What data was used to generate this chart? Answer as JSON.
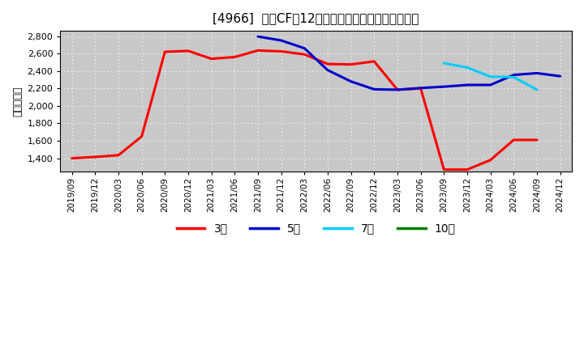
{
  "title": "[4966]  投賄CFだ12か月移動合計の標準偏差の推移",
  "ylabel": "（百万円）",
  "ylim": [
    1250,
    2860
  ],
  "yticks": [
    1400,
    1600,
    1800,
    2000,
    2200,
    2400,
    2600,
    2800
  ],
  "background_color": "#ffffff",
  "plot_bg_color": "#c8c8c8",
  "grid_color": "#ffffff",
  "series": {
    "3年": {
      "color": "#ff0000",
      "x": [
        "2019/09",
        "2019/12",
        "2020/03",
        "2020/06",
        "2020/09",
        "2020/12",
        "2021/03",
        "2021/06",
        "2021/09",
        "2021/12",
        "2022/03",
        "2022/06",
        "2022/09",
        "2022/12",
        "2023/03",
        "2023/06",
        "2023/09",
        "2023/12",
        "2024/03",
        "2024/06",
        "2024/09",
        "2024/12"
      ],
      "y": [
        1400,
        1415,
        1435,
        1650,
        2620,
        2630,
        2540,
        2560,
        2635,
        2625,
        2590,
        2480,
        2475,
        2510,
        2185,
        2200,
        1270,
        1270,
        1380,
        1610,
        1610,
        null
      ]
    },
    "5年": {
      "color": "#0000cc",
      "x": [
        "2021/09",
        "2021/12",
        "2022/03",
        "2022/06",
        "2022/09",
        "2022/12",
        "2023/03",
        "2023/06",
        "2023/09",
        "2023/12",
        "2024/03",
        "2024/06",
        "2024/09",
        "2024/12"
      ],
      "y": [
        2795,
        2750,
        2660,
        2410,
        2280,
        2190,
        2185,
        2205,
        2220,
        2240,
        2240,
        2355,
        2375,
        2340
      ]
    },
    "7年": {
      "color": "#00ccff",
      "x": [
        "2023/09",
        "2023/12",
        "2024/03",
        "2024/06",
        "2024/09",
        "2024/12"
      ],
      "y": [
        2490,
        2440,
        2335,
        2330,
        2185,
        null
      ]
    },
    "10年": {
      "color": "#008000",
      "x": [],
      "y": []
    }
  },
  "legend_labels": [
    "3年",
    "5年",
    "7年",
    "10年"
  ],
  "legend_colors": [
    "#ff0000",
    "#0000cc",
    "#00ccff",
    "#008000"
  ],
  "xtick_labels": [
    "2019/09",
    "2019/12",
    "2020/03",
    "2020/06",
    "2020/09",
    "2020/12",
    "2021/03",
    "2021/06",
    "2021/09",
    "2021/12",
    "2022/03",
    "2022/06",
    "2022/09",
    "2022/12",
    "2023/03",
    "2023/06",
    "2023/09",
    "2023/12",
    "2024/03",
    "2024/06",
    "2024/09",
    "2024/12"
  ]
}
